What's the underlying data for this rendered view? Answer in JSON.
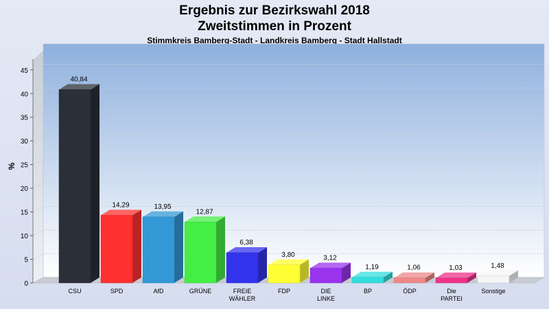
{
  "header": {
    "title": "Ergebnis zur Bezirkswahl 2018",
    "subtitle": "Zweitstimmen in Prozent",
    "subsubtitle": "Stimmkreis Bamberg-Stadt - Landkreis Bamberg - Stadt Hallstadt"
  },
  "chart_data": {
    "type": "bar",
    "title": "Ergebnis zur Bezirkswahl 2018",
    "subtitle": "Zweitstimmen in Prozent",
    "ylabel": "%",
    "xlabel": "",
    "ylim": [
      0,
      47
    ],
    "yticks": [
      0,
      5,
      10,
      15,
      20,
      25,
      30,
      35,
      40,
      45
    ],
    "grid": true,
    "categories": [
      [
        "CSU"
      ],
      [
        "SPD"
      ],
      [
        "AfD"
      ],
      [
        "GRÜNE"
      ],
      [
        "FREIE",
        "WÄHLER"
      ],
      [
        "FDP"
      ],
      [
        "DIE",
        "LINKE"
      ],
      [
        "BP"
      ],
      [
        "ÖDP"
      ],
      [
        "Die",
        "PARTEI"
      ],
      [
        "Sonstige"
      ]
    ],
    "values": [
      40.84,
      14.29,
      13.95,
      12.87,
      6.38,
      3.8,
      3.12,
      1.19,
      1.06,
      1.03,
      1.48
    ],
    "value_labels": [
      "40,84",
      "14,29",
      "13,95",
      "12,87",
      "6,38",
      "3,80",
      "3,12",
      "1,19",
      "1,06",
      "1,03",
      "1,48"
    ],
    "colors": [
      "#2a2f38",
      "#ff3030",
      "#3399d6",
      "#44ee44",
      "#3333ee",
      "#ffff33",
      "#9933ee",
      "#33dddd",
      "#ee8888",
      "#ee3388",
      "#f5f5f5"
    ]
  }
}
